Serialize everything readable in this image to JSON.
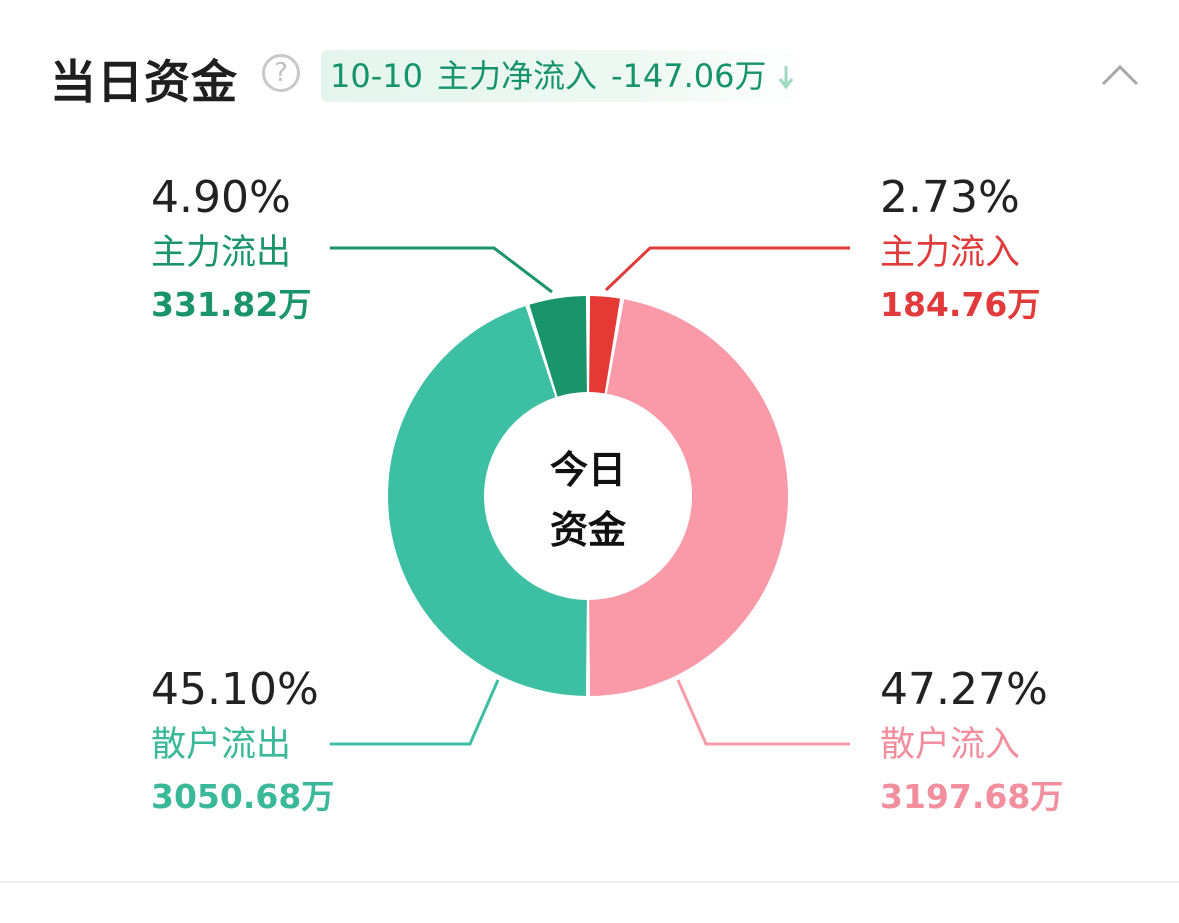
{
  "header": {
    "title": "当日资金",
    "help_icon": "question-circle-icon",
    "date": "10-10",
    "net_label": "主力净流入",
    "net_value": "-147.06万",
    "net_direction_icon": "arrow-down-icon",
    "collapse_icon": "chevron-up-icon"
  },
  "center_label": {
    "line1": "今日",
    "line2": "资金"
  },
  "colors": {
    "main_out": "#1a946a",
    "retail_out": "#3dbfa3",
    "main_in": "#e53935",
    "retail_in": "#fa9aa8",
    "badge_text": "#15936a"
  },
  "chart_data": {
    "type": "pie",
    "style": "donut",
    "center_text": "今日资金",
    "slices": [
      {
        "key": "main_in",
        "label": "主力流入",
        "percent": 2.73,
        "display_percent": "2.73%",
        "amount": 184.76,
        "display_amount": "184.76万",
        "color": "#e53935",
        "label_color": "#e03a3a"
      },
      {
        "key": "retail_in",
        "label": "散户流入",
        "percent": 47.27,
        "display_percent": "47.27%",
        "amount": 3197.68,
        "display_amount": "3197.68万",
        "color": "#fa9aa8",
        "label_color": "#f28e9e"
      },
      {
        "key": "retail_out",
        "label": "散户流出",
        "percent": 45.1,
        "display_percent": "45.10%",
        "amount": 3050.68,
        "display_amount": "3050.68万",
        "color": "#3dbfa3",
        "label_color": "#3ab89a"
      },
      {
        "key": "main_out",
        "label": "主力流出",
        "percent": 4.9,
        "display_percent": "4.90%",
        "amount": 331.82,
        "display_amount": "331.82万",
        "color": "#1a946a",
        "label_color": "#1a946a"
      }
    ]
  }
}
